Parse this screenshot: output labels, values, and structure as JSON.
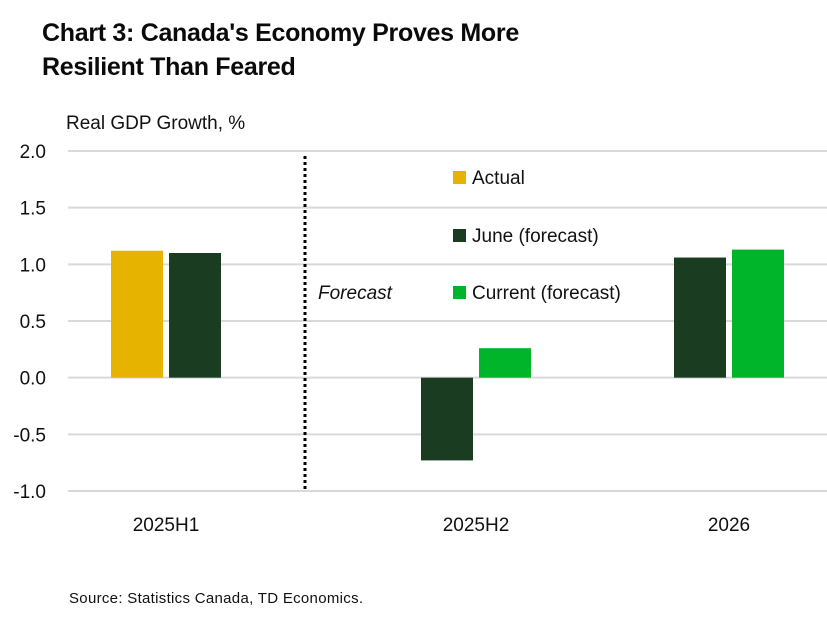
{
  "chart_data": {
    "type": "bar",
    "title": "Chart 3: Canada's Economy Proves More Resilient Than Feared",
    "title_lines": [
      "Chart 3: Canada's Economy Proves More",
      "Resilient Than Feared"
    ],
    "ylabel": "Real GDP Growth, %",
    "xlabel": "",
    "ylim": [
      -1.0,
      2.0
    ],
    "yticks": [
      2.0,
      1.5,
      1.0,
      0.5,
      0.0,
      -0.5,
      -1.0
    ],
    "ytick_labels": [
      "2.0",
      "1.5",
      "1.0",
      "0.5",
      "0.0",
      "-0.5",
      "-1.0"
    ],
    "grid": true,
    "categories": [
      "2025H1",
      "2025H2",
      "2026"
    ],
    "series": [
      {
        "name": "Actual",
        "color": "#E6B400",
        "values": [
          1.12,
          null,
          null
        ]
      },
      {
        "name": "June (forecast)",
        "color": "#1A3D22",
        "values": [
          1.1,
          -0.73,
          1.06
        ]
      },
      {
        "name": "Current (forecast)",
        "color": "#00B52A",
        "values": [
          null,
          0.26,
          1.13
        ]
      }
    ],
    "legend_position": "top-center",
    "annotations": [
      {
        "text": "Forecast",
        "style": "italic",
        "note": "dotted vertical divider between 2025H1 and 2025H2"
      }
    ],
    "source": "Source: Statistics Canada, TD Economics."
  }
}
